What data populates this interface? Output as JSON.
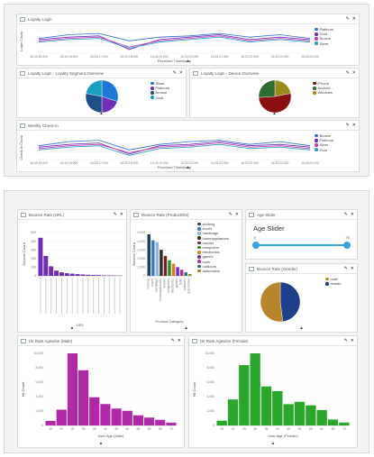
{
  "colors": {
    "purple": "#6f2db8",
    "teal": "#1e5a8a",
    "magenta": "#b02aa7",
    "green": "#2aa72a",
    "blue": "#1c77d8",
    "slider": "#3aa0e0",
    "olive": "#9a8a1a",
    "darkred": "#8a1010",
    "darkgreen": "#2f6a2f"
  },
  "top": {
    "loyalty_login": {
      "title": "Loyalty Login",
      "ylabel": "Login Count",
      "xlabel": "Received Timestamp",
      "ticks": [
        "16:33:15.000",
        "16:33:16.000",
        "16:33:17.000",
        "16:33:18.000",
        "16:33:19.000",
        "16:33:20.000",
        "16:33:21.000",
        "16:33:22.000",
        "16:33:23.000",
        "16:33:24.000"
      ],
      "legend": [
        "Platinum",
        "Gold",
        "Bronze",
        "Silver"
      ]
    },
    "segment": {
      "title": "Loyalty Login - Loyalty Segment Overview",
      "legend": [
        "Silver",
        "Platinum",
        "Bronze",
        "Gold"
      ]
    },
    "device": {
      "title": "Loyalty Login - Device Overview",
      "legend": [
        "iPhone",
        "Android",
        "Windows"
      ]
    },
    "weekly": {
      "title": "Weekly Check-in",
      "ylabel": "Check-in Count",
      "xlabel": "Received Timestamp",
      "ticks": [
        "16:33:15.000",
        "16:33:16.000",
        "16:33:17.000",
        "16:33:18.000",
        "16:33:19.000",
        "16:33:20.000",
        "16:33:21.000",
        "16:33:22.000",
        "16:33:23.000",
        "16:33:24.000"
      ],
      "legend": [
        "Bronze",
        "Platinum",
        "Silver",
        "Gold"
      ]
    }
  },
  "bottom": {
    "bounce_url": {
      "title": "Bounce Rate (URL)",
      "ylabel": "Bounce Count",
      "xlabel": "URL"
    },
    "bounce_product": {
      "title": "Bounce Rate (ProductIDs)",
      "ylabel": "Bounce Count",
      "xlabel": "Product Category",
      "legend": [
        "clothing",
        "shoes",
        "handbags",
        "homeappliances",
        "movies",
        "computers",
        "electronics",
        "games",
        "tools",
        "outdoors",
        "automotive"
      ]
    },
    "age_slider": {
      "title": "Age Slider",
      "heading": "Age Slider",
      "min": "0",
      "max": "70"
    },
    "gender": {
      "title": "Bounce Rate (Gender)",
      "legend": [
        "male",
        "female"
      ]
    },
    "hit_male": {
      "title": "Hit Rate Agewise (Male)",
      "ylabel": "Hit Count",
      "xlabel": "User Age (Male)"
    },
    "hit_female": {
      "title": "Hit Rate Agewise (Female)",
      "ylabel": "Hit Count",
      "xlabel": "User Age (Female)"
    }
  },
  "chart_data": [
    {
      "type": "line",
      "title": "Loyalty Login",
      "xlabel": "Received Timestamp",
      "ylabel": "Login Count",
      "x": [
        "16:33:15.000",
        "16:33:16.000",
        "16:33:17.000",
        "16:33:18.000",
        "16:33:19.000",
        "16:33:20.000",
        "16:33:21.000",
        "16:33:22.000",
        "16:33:23.000",
        "16:33:24.000"
      ],
      "series": [
        {
          "name": "Platinum",
          "values": [
            72,
            78,
            80,
            68,
            74,
            76,
            80,
            74,
            78,
            72
          ]
        },
        {
          "name": "Gold",
          "values": [
            70,
            74,
            76,
            54,
            70,
            74,
            78,
            70,
            74,
            70
          ]
        },
        {
          "name": "Bronze",
          "values": [
            68,
            72,
            74,
            58,
            68,
            72,
            76,
            68,
            72,
            68
          ]
        },
        {
          "name": "Silver",
          "values": [
            66,
            70,
            72,
            56,
            66,
            70,
            74,
            66,
            70,
            66
          ]
        }
      ]
    },
    {
      "type": "pie",
      "title": "Loyalty Login - Loyalty Segment Overview",
      "categories": [
        "Silver",
        "Platinum",
        "Bronze",
        "Gold"
      ],
      "values": [
        30,
        20,
        28,
        22
      ]
    },
    {
      "type": "pie",
      "title": "Loyalty Login - Device Overview",
      "categories": [
        "iPhone",
        "Android",
        "Windows"
      ],
      "values": [
        22,
        52,
        26
      ]
    },
    {
      "type": "line",
      "title": "Weekly Check-in",
      "xlabel": "Received Timestamp",
      "ylabel": "Check-in Count",
      "x": [
        "16:33:15.000",
        "16:33:16.000",
        "16:33:17.000",
        "16:33:18.000",
        "16:33:19.000",
        "16:33:20.000",
        "16:33:21.000",
        "16:33:22.000",
        "16:33:23.000",
        "16:33:24.000"
      ],
      "series": [
        {
          "name": "Bronze",
          "values": [
            70,
            76,
            78,
            64,
            72,
            76,
            78,
            72,
            76,
            70
          ]
        },
        {
          "name": "Platinum",
          "values": [
            68,
            72,
            74,
            58,
            70,
            72,
            76,
            70,
            72,
            68
          ]
        },
        {
          "name": "Silver",
          "values": [
            66,
            70,
            72,
            60,
            68,
            70,
            74,
            68,
            70,
            66
          ]
        },
        {
          "name": "Gold",
          "values": [
            64,
            68,
            70,
            56,
            66,
            68,
            72,
            66,
            68,
            64
          ]
        }
      ]
    },
    {
      "type": "bar",
      "title": "Bounce Rate (URL)",
      "ylabel": "Bounce Count",
      "xlabel": "URL",
      "values": [
        440,
        230,
        110,
        60,
        40,
        30,
        25,
        20,
        16,
        12,
        10,
        8,
        6,
        5,
        4,
        3
      ],
      "yticks": [
        "500",
        "400",
        "300",
        "200",
        "100",
        "0"
      ]
    },
    {
      "type": "bar",
      "title": "Bounce Rate (ProductIDs)",
      "ylabel": "Bounce Count",
      "xlabel": "Product Category",
      "categories": [
        "clothing",
        "shoes",
        "handbags",
        "homeappliances",
        "movies",
        "computers",
        "electronics",
        "games",
        "tools",
        "outdoors",
        "automotive"
      ],
      "values": [
        4800,
        4100,
        3900,
        3000,
        2300,
        1800,
        1400,
        1000,
        700,
        400,
        200
      ],
      "yticks": [
        "5,000",
        "4,000",
        "3,000",
        "2,000",
        "1,000",
        "0"
      ]
    },
    {
      "type": "pie",
      "title": "Bounce Rate (Gender)",
      "categories": [
        "male",
        "female"
      ],
      "values": [
        48,
        52
      ]
    },
    {
      "type": "bar",
      "title": "Hit Rate Agewise (Male)",
      "ylabel": "Hit Count",
      "xlabel": "User Age (Male)",
      "categories": [
        "15",
        "20",
        "25",
        "30",
        "35",
        "40",
        "45",
        "50",
        "55",
        "60",
        "65",
        "70"
      ],
      "values": [
        800,
        2800,
        12800,
        9800,
        5000,
        3800,
        3000,
        2600,
        1800,
        1400,
        1000,
        500
      ],
      "yticks": [
        "10,000",
        "8,000",
        "6,000",
        "4,000",
        "2,000",
        "0"
      ]
    },
    {
      "type": "bar",
      "title": "Hit Rate Agewise (Female)",
      "ylabel": "Hit Count",
      "xlabel": "User Age (Female)",
      "categories": [
        "15",
        "20",
        "25",
        "30",
        "35",
        "40",
        "45",
        "50",
        "55",
        "60",
        "65",
        "70"
      ],
      "values": [
        800,
        4400,
        10200,
        12200,
        6600,
        5800,
        3600,
        4000,
        3400,
        2600,
        1000,
        500
      ],
      "yticks": [
        "10,000",
        "8,000",
        "6,000",
        "4,000",
        "2,000",
        "0"
      ]
    }
  ]
}
